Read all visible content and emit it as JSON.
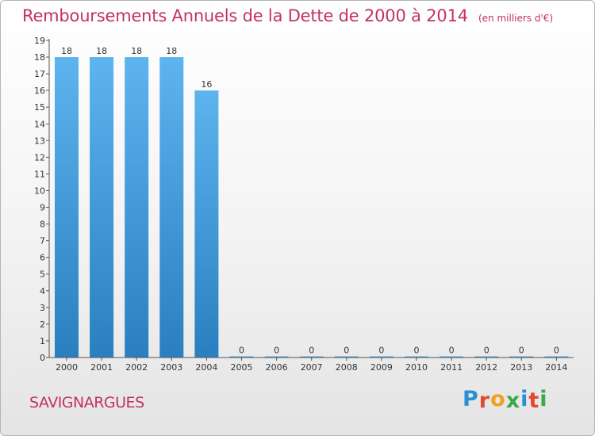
{
  "title": "Remboursements Annuels de la Dette de 2000 à 2014",
  "subtitle": "(en milliers d'€)",
  "location": "SAVIGNARGUES",
  "logo": {
    "text": "Proxiti",
    "letter_colors": [
      "#2a8fd6",
      "#e2492f",
      "#f0a020",
      "#3aa84a",
      "#2a8fd6",
      "#e2492f",
      "#3aa84a"
    ]
  },
  "colors": {
    "title": "#c4306a",
    "bar_top": "#5db4ee",
    "bar_bottom": "#2a7fc0",
    "axis": "#555555"
  },
  "chart_data": {
    "type": "bar",
    "categories": [
      "2000",
      "2001",
      "2002",
      "2003",
      "2004",
      "2005",
      "2006",
      "2007",
      "2008",
      "2009",
      "2010",
      "2011",
      "2012",
      "2013",
      "2014"
    ],
    "values": [
      18,
      18,
      18,
      18,
      16,
      0,
      0,
      0,
      0,
      0,
      0,
      0,
      0,
      0,
      0
    ],
    "y_ticks": [
      "0",
      "1",
      "2",
      "3",
      "4",
      "5",
      "6",
      "7",
      "8",
      "9",
      "10",
      "11",
      "12",
      "13",
      "14",
      "15",
      "16",
      "17",
      "18",
      "19"
    ],
    "ylim": [
      0,
      19
    ],
    "grid": false,
    "data_labels": true
  }
}
